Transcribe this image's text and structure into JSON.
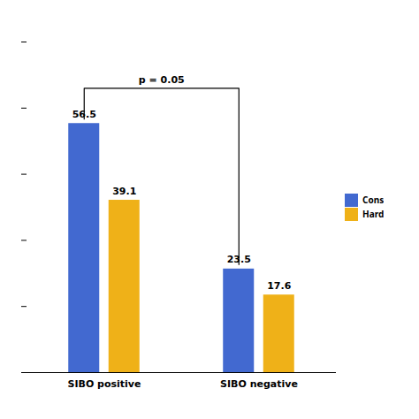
{
  "chart_data": {
    "type": "bar",
    "categories": [
      "SIBO positive",
      "SIBO negative"
    ],
    "series": [
      {
        "name": "Cons",
        "values": [
          56.5,
          23.5
        ]
      },
      {
        "name": "Hard",
        "values": [
          39.1,
          17.6
        ]
      }
    ],
    "ylim": [
      0,
      75
    ],
    "yticks": [
      0,
      15,
      30,
      45,
      60,
      75
    ],
    "tick_labels": "x",
    "data_labels": true,
    "legend": "right",
    "annotations": [
      "p = 0.05"
    ]
  }
}
